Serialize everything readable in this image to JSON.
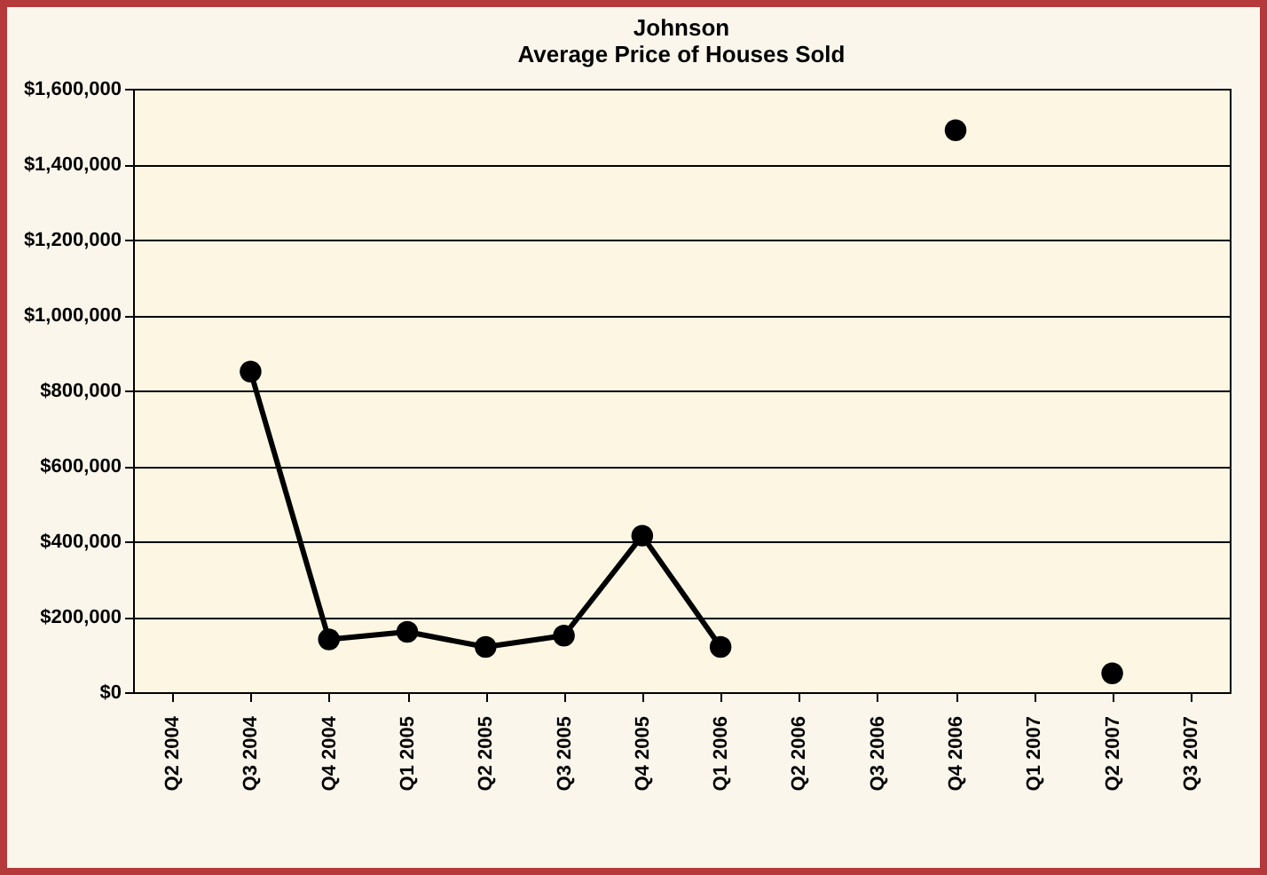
{
  "chart_data": {
    "type": "line",
    "title": "Johnson",
    "subtitle": "Average Price of Houses Sold",
    "categories": [
      "Q2 2004",
      "Q3 2004",
      "Q4 2004",
      "Q1 2005",
      "Q2 2005",
      "Q3 2005",
      "Q4 2005",
      "Q1 2006",
      "Q2 2006",
      "Q3 2006",
      "Q4 2006",
      "Q1 2007",
      "Q2 2007",
      "Q3 2007"
    ],
    "series": [
      {
        "color": "#000000",
        "values": [
          null,
          850000,
          140000,
          160000,
          120000,
          150000,
          415000,
          120000,
          null,
          null,
          1490000,
          null,
          50000,
          null
        ]
      }
    ],
    "ylim": [
      0,
      1600000
    ],
    "yticks": [
      {
        "value": 0,
        "label": "$0"
      },
      {
        "value": 200000,
        "label": "$200,000"
      },
      {
        "value": 400000,
        "label": "$400,000"
      },
      {
        "value": 600000,
        "label": "$600,000"
      },
      {
        "value": 800000,
        "label": "$800,000"
      },
      {
        "value": 1000000,
        "label": "$1,000,000"
      },
      {
        "value": 1200000,
        "label": "$1,200,000"
      },
      {
        "value": 1400000,
        "label": "$1,400,000"
      },
      {
        "value": 1600000,
        "label": "$1,600,000"
      }
    ],
    "grid": "y",
    "marker": "circle",
    "line_style": "solid",
    "legend": false
  }
}
